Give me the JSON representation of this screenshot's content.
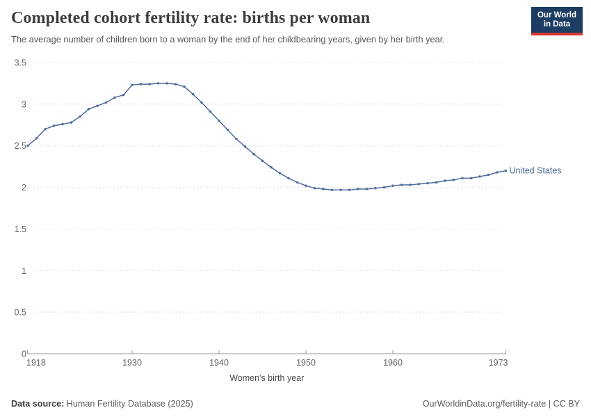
{
  "header": {
    "title": "Completed cohort fertility rate: births per woman",
    "subtitle": "The average number of children born to a woman by the end of her childbearing years, given by her birth year.",
    "logo": {
      "line1": "Our World",
      "line2": "in Data"
    }
  },
  "chart_data": {
    "type": "line",
    "title": "Completed cohort fertility rate: births per woman",
    "xlabel": "Women's birth year",
    "ylabel": "",
    "ylim": [
      0,
      3.5
    ],
    "yticks": [
      0,
      0.5,
      1,
      1.5,
      2,
      2.5,
      3,
      3.5
    ],
    "ytick_labels": [
      "0",
      "0.5",
      "1",
      "1.5",
      "2",
      "2.5",
      "3",
      "3.5"
    ],
    "xticks": [
      1918,
      1930,
      1940,
      1950,
      1960,
      1973
    ],
    "grid": "horizontal-dashed",
    "legend_position": "end-of-line-label",
    "x": [
      1918,
      1919,
      1920,
      1921,
      1922,
      1923,
      1924,
      1925,
      1926,
      1927,
      1928,
      1929,
      1930,
      1931,
      1932,
      1933,
      1934,
      1935,
      1936,
      1937,
      1938,
      1939,
      1940,
      1941,
      1942,
      1943,
      1944,
      1945,
      1946,
      1947,
      1948,
      1949,
      1950,
      1951,
      1952,
      1953,
      1954,
      1955,
      1956,
      1957,
      1958,
      1959,
      1960,
      1961,
      1962,
      1963,
      1964,
      1965,
      1966,
      1967,
      1968,
      1969,
      1970,
      1971,
      1972,
      1973
    ],
    "series": [
      {
        "name": "United States",
        "color": "#4C6A9C",
        "values": [
          2.5,
          2.59,
          2.7,
          2.74,
          2.76,
          2.78,
          2.85,
          2.94,
          2.98,
          3.02,
          3.08,
          3.11,
          3.23,
          3.24,
          3.24,
          3.25,
          3.25,
          3.24,
          3.21,
          3.12,
          3.02,
          2.91,
          2.8,
          2.69,
          2.58,
          2.49,
          2.4,
          2.32,
          2.24,
          2.17,
          2.11,
          2.06,
          2.02,
          1.99,
          1.98,
          1.97,
          1.97,
          1.97,
          1.98,
          1.98,
          1.99,
          2.0,
          2.02,
          2.03,
          2.03,
          2.04,
          2.05,
          2.06,
          2.08,
          2.09,
          2.11,
          2.11,
          2.13,
          2.15,
          2.18,
          2.2
        ]
      }
    ]
  },
  "footer": {
    "source_label": "Data source:",
    "source_value": "Human Fertility Database (2025)",
    "right_text": "OurWorldinData.org/fertility-rate | CC BY"
  },
  "colors": {
    "line": "#4C6A9C",
    "grid": "#dcdcdc",
    "axis": "#999999",
    "tick_text": "#666666",
    "axis_title_text": "#4a4a4a",
    "logo_bg": "#1d3d63",
    "logo_stripe": "#d43a33"
  }
}
